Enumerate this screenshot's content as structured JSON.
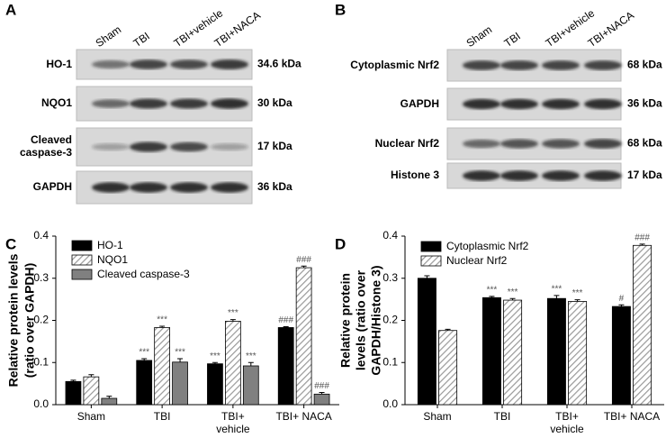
{
  "blots": [
    {
      "panel": "A",
      "lanes": [
        "Sham",
        "TBI",
        "TBI+vehicle",
        "TBI+NACA"
      ],
      "rows": [
        {
          "label": "HO-1",
          "size": "34.6 kDa"
        },
        {
          "label": "NQO1",
          "size": "30 kDa"
        },
        {
          "label": "Cleaved caspase-3",
          "size": "17 kDa"
        },
        {
          "label": "GAPDH",
          "size": "36 kDa"
        }
      ]
    },
    {
      "panel": "B",
      "lanes": [
        "Sham",
        "TBI",
        "TBI+vehicle",
        "TBI+NACA"
      ],
      "rows": [
        {
          "label": "Cytoplasmic Nrf2",
          "size": "68 kDa"
        },
        {
          "label": "GAPDH",
          "size": "36 kDa"
        },
        {
          "label": "Nuclear Nrf2",
          "size": "68 kDa"
        },
        {
          "label": "Histone 3",
          "size": "17 kDa"
        }
      ]
    }
  ],
  "chart_data": [
    {
      "type": "bar",
      "panel": "C",
      "ylabel": [
        "Relative protein levels",
        "(ratio over GAPDH)"
      ],
      "categories": [
        "Sham",
        "TBI",
        "TBI+ vehicle",
        "TBI+ NACA"
      ],
      "ylim": [
        0,
        0.4
      ],
      "yticks": [
        {
          "value": 0,
          "label": "0.0"
        },
        0.1,
        0.2,
        0.3,
        0.4
      ],
      "grid": false,
      "legend": "upper-left",
      "series": [
        {
          "name": "HO-1",
          "color": "#000000",
          "hatch": false,
          "values": [
            0.055,
            0.105,
            0.097,
            0.183
          ],
          "errors": [
            0.003,
            0.004,
            0.003,
            0.002
          ],
          "significance": [
            null,
            "***",
            "***",
            "###"
          ]
        },
        {
          "name": "NQO1",
          "color": "#ffffff",
          "hatch": true,
          "values": [
            0.066,
            0.183,
            0.198,
            0.325
          ],
          "errors": [
            0.005,
            0.003,
            0.004,
            0.004
          ],
          "significance": [
            null,
            "***",
            "***",
            "###"
          ]
        },
        {
          "name": "Cleaved caspase-3",
          "color": "#808080",
          "hatch": false,
          "values": [
            0.015,
            0.101,
            0.092,
            0.025
          ],
          "errors": [
            0.005,
            0.008,
            0.008,
            0.004
          ],
          "significance": [
            null,
            "***",
            "***",
            "###"
          ]
        }
      ]
    },
    {
      "type": "bar",
      "panel": "D",
      "ylabel": [
        "Relative protein",
        "levels (ratio over",
        "GAPDH/Histone 3)"
      ],
      "categories": [
        "Sham",
        "TBI",
        "TBI+ vehicle",
        "TBI+ NACA"
      ],
      "ylim": [
        0,
        0.4
      ],
      "yticks": [
        {
          "value": 0,
          "label": "0.0"
        },
        0.1,
        0.2,
        0.3,
        0.4
      ],
      "grid": false,
      "legend": "upper-left",
      "series": [
        {
          "name": "Cytoplasmic Nrf2",
          "color": "#000000",
          "hatch": false,
          "values": [
            0.3,
            0.254,
            0.252,
            0.233
          ],
          "errors": [
            0.006,
            0.003,
            0.007,
            0.004
          ],
          "significance": [
            null,
            "***",
            "***",
            "#"
          ]
        },
        {
          "name": "Nuclear Nrf2",
          "color": "#ffffff",
          "hatch": true,
          "values": [
            0.176,
            0.248,
            0.245,
            0.378
          ],
          "errors": [
            0.003,
            0.004,
            0.004,
            0.003
          ],
          "significance": [
            null,
            "***",
            "***",
            "###"
          ]
        }
      ]
    }
  ]
}
